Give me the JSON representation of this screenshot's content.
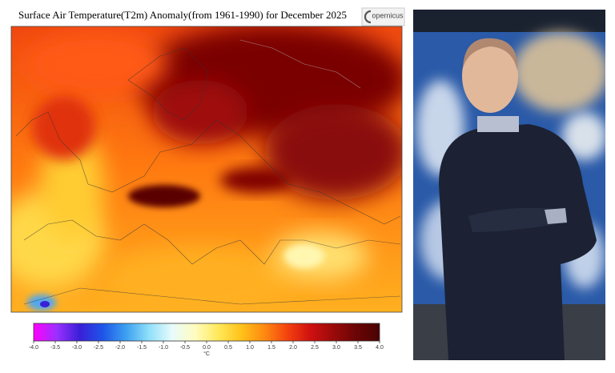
{
  "map": {
    "title": "Surface Air Temperature(T2m) Anomaly(from 1961-1990) for December 2025",
    "logo": "opernicus",
    "colorbar": {
      "lim": [
        -4,
        4
      ],
      "ticks": [
        {
          "value": -4,
          "label": "-4.0"
        },
        {
          "value": -3.5,
          "label": "-3.5"
        },
        {
          "value": -3,
          "label": "-3.0"
        },
        {
          "value": -2.5,
          "label": "-2.5"
        },
        {
          "value": -2,
          "label": "-2.0"
        },
        {
          "value": -1.5,
          "label": "-1.5"
        },
        {
          "value": -1,
          "label": "-1.0"
        },
        {
          "value": -0.5,
          "label": "-0.5"
        },
        {
          "value": 0,
          "label": "0.0"
        },
        {
          "value": 0.5,
          "label": "0.5"
        },
        {
          "value": 1,
          "label": "1.0"
        },
        {
          "value": 1.5,
          "label": "1.5"
        },
        {
          "value": 2,
          "label": "2.0"
        },
        {
          "value": 2.5,
          "label": "2.5"
        },
        {
          "value": 3,
          "label": "3.0"
        },
        {
          "value": 3.5,
          "label": "3.5"
        },
        {
          "value": 4,
          "label": "4.0"
        }
      ],
      "unit": "°C",
      "colors": [
        "#ff00ff",
        "#9b30ff",
        "#3a1fd8",
        "#1e55e8",
        "#3ca0f0",
        "#8fe0fa",
        "#e8fbfb",
        "#fffcc0",
        "#ffe95a",
        "#ffc21a",
        "#ff8a10",
        "#f4420f",
        "#d01010",
        "#9a0a0a",
        "#6a0505",
        "#4a0303"
      ]
    }
  }
}
